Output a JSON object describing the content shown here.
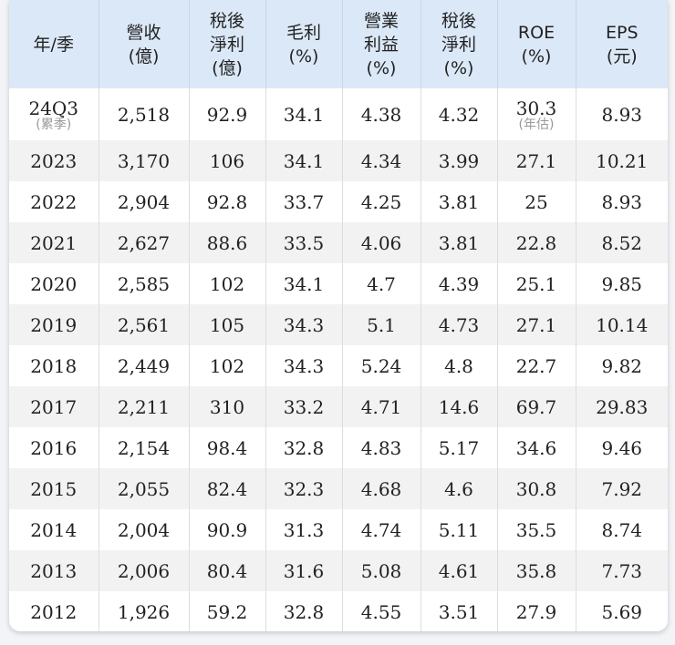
{
  "headers": [
    [
      "年/季"
    ],
    [
      "營收",
      "(億)"
    ],
    [
      "稅後",
      "淨利",
      "(億)"
    ],
    [
      "毛利",
      "(%)"
    ],
    [
      "營業",
      "利益",
      "(%)"
    ],
    [
      "稅後",
      "淨利",
      "(%)"
    ],
    [
      "ROE",
      "(%)"
    ],
    [
      "EPS",
      "(元)"
    ]
  ],
  "first_row": {
    "period": "24Q3",
    "period_note": "(累季)",
    "revenue": "2,518",
    "net_income": "92.9",
    "gross_margin": "34.1",
    "operating_margin": "4.38",
    "net_margin": "4.32",
    "roe": "30.3",
    "roe_note": "(年估)",
    "eps": "8.93"
  },
  "rows": [
    [
      "2023",
      "3,170",
      "106",
      "34.1",
      "4.34",
      "3.99",
      "27.1",
      "10.21"
    ],
    [
      "2022",
      "2,904",
      "92.8",
      "33.7",
      "4.25",
      "3.81",
      "25",
      "8.93"
    ],
    [
      "2021",
      "2,627",
      "88.6",
      "33.5",
      "4.06",
      "3.81",
      "22.8",
      "8.52"
    ],
    [
      "2020",
      "2,585",
      "102",
      "34.1",
      "4.7",
      "4.39",
      "25.1",
      "9.85"
    ],
    [
      "2019",
      "2,561",
      "105",
      "34.3",
      "5.1",
      "4.73",
      "27.1",
      "10.14"
    ],
    [
      "2018",
      "2,449",
      "102",
      "34.3",
      "5.24",
      "4.8",
      "22.7",
      "9.82"
    ],
    [
      "2017",
      "2,211",
      "310",
      "33.2",
      "4.71",
      "14.6",
      "69.7",
      "29.83"
    ],
    [
      "2016",
      "2,154",
      "98.4",
      "32.8",
      "4.83",
      "5.17",
      "34.6",
      "9.46"
    ],
    [
      "2015",
      "2,055",
      "82.4",
      "32.3",
      "4.68",
      "4.6",
      "30.8",
      "7.92"
    ],
    [
      "2014",
      "2,004",
      "90.9",
      "31.3",
      "4.74",
      "5.11",
      "35.5",
      "8.74"
    ],
    [
      "2013",
      "2,006",
      "80.4",
      "31.6",
      "5.08",
      "4.61",
      "35.8",
      "7.73"
    ],
    [
      "2012",
      "1,926",
      "59.2",
      "32.8",
      "4.55",
      "3.51",
      "27.9",
      "5.69"
    ]
  ]
}
